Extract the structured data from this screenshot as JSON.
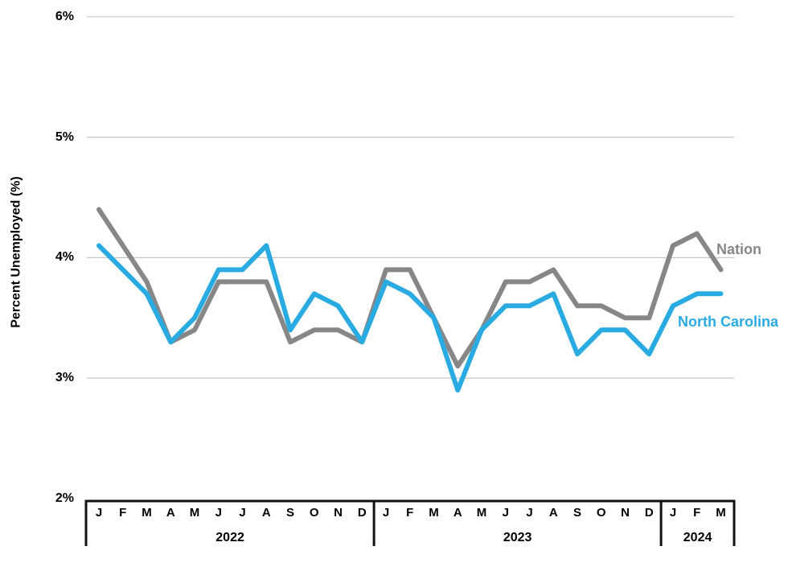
{
  "y_axis": {
    "title": "Percent Unemployed (%)",
    "tick_labels": [
      "6%",
      "5%",
      "4%",
      "3%",
      "2%"
    ],
    "tick_values": [
      6,
      5,
      4,
      3,
      2
    ]
  },
  "x_axis": {
    "month_letters": [
      "J",
      "F",
      "M",
      "A",
      "M",
      "J",
      "J",
      "A",
      "S",
      "O",
      "N",
      "D"
    ],
    "years": [
      {
        "label": "2022",
        "months": 12
      },
      {
        "label": "2023",
        "months": 12
      },
      {
        "label": "2024",
        "months": 3
      }
    ]
  },
  "series_labels": {
    "nation": "Nation",
    "north_carolina": "North Carolina"
  },
  "colors": {
    "nation": "#878787",
    "north_carolina": "#29ABE2",
    "gridline": "#C4C4C4",
    "axis": "#111111",
    "text": "#000000"
  },
  "chart_data": {
    "type": "line",
    "title": "",
    "ylabel": "Percent Unemployed (%)",
    "ylim": [
      2,
      6
    ],
    "y_ticks": [
      "2%",
      "3%",
      "4%",
      "5%",
      "6%"
    ],
    "grid": "horizontal",
    "legend": "inline labels at line ends",
    "x_months": [
      "2022-01",
      "2022-02",
      "2022-03",
      "2022-04",
      "2022-05",
      "2022-06",
      "2022-07",
      "2022-08",
      "2022-09",
      "2022-10",
      "2022-11",
      "2022-12",
      "2023-01",
      "2023-02",
      "2023-03",
      "2023-04",
      "2023-05",
      "2023-06",
      "2023-07",
      "2023-08",
      "2023-09",
      "2023-10",
      "2023-11",
      "2023-12",
      "2024-01",
      "2024-02",
      "2024-03"
    ],
    "series": [
      {
        "name": "Nation",
        "color": "#878787",
        "values": [
          4.4,
          4.1,
          3.8,
          3.3,
          3.4,
          3.8,
          3.8,
          3.8,
          3.3,
          3.4,
          3.4,
          3.3,
          3.9,
          3.9,
          3.5,
          3.1,
          3.4,
          3.8,
          3.8,
          3.9,
          3.6,
          3.6,
          3.5,
          3.5,
          4.1,
          4.2,
          3.9
        ]
      },
      {
        "name": "North Carolina",
        "color": "#29ABE2",
        "values": [
          4.1,
          3.9,
          3.7,
          3.3,
          3.5,
          3.9,
          3.9,
          4.1,
          3.4,
          3.7,
          3.6,
          3.3,
          3.8,
          3.7,
          3.5,
          2.9,
          3.4,
          3.6,
          3.6,
          3.7,
          3.2,
          3.4,
          3.4,
          3.2,
          3.6,
          3.7,
          3.7
        ]
      }
    ]
  }
}
